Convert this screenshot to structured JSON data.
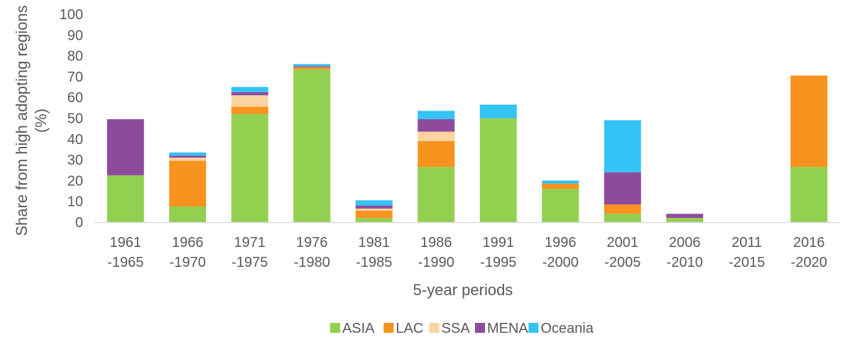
{
  "chart_data": {
    "type": "bar",
    "stacked": true,
    "title": "",
    "xlabel": "5-year periods",
    "ylabel": "Share from high adopting regions (%)",
    "ylim": [
      0,
      100
    ],
    "yticks": [
      0,
      10,
      20,
      30,
      40,
      50,
      60,
      70,
      80,
      90,
      100
    ],
    "grid": false,
    "legend_position": "bottom",
    "categories": [
      [
        "1961",
        "-1965"
      ],
      [
        "1966",
        "-1970"
      ],
      [
        "1971",
        "-1975"
      ],
      [
        "1976",
        "-1980"
      ],
      [
        "1981",
        "-1985"
      ],
      [
        "1986",
        "-1990"
      ],
      [
        "1991",
        "-1995"
      ],
      [
        "1996",
        "-2000"
      ],
      [
        "2001",
        "-2005"
      ],
      [
        "2006",
        "-2010"
      ],
      [
        "2011",
        "-2015"
      ],
      [
        "2016",
        "-2020"
      ]
    ],
    "series": [
      {
        "name": "ASIA",
        "color": "#92d050",
        "values": [
          22.5,
          7.5,
          52,
          73.5,
          2,
          26.5,
          50,
          16,
          4,
          2,
          0,
          26.5
        ]
      },
      {
        "name": "LAC",
        "color": "#f7931e",
        "values": [
          0,
          22,
          3.5,
          1,
          3.5,
          12.5,
          0,
          2.5,
          4.5,
          0,
          0,
          44
        ]
      },
      {
        "name": "SSA",
        "color": "#fbd3a0",
        "values": [
          0,
          1.5,
          5.5,
          0,
          1,
          4.5,
          0,
          0,
          0,
          0,
          0,
          0
        ]
      },
      {
        "name": "MENA",
        "color": "#8e4b9e",
        "values": [
          27,
          1,
          1.5,
          0.5,
          1.5,
          6,
          0,
          0,
          15.5,
          2,
          0,
          0
        ]
      },
      {
        "name": "Oceania",
        "color": "#33c3f5",
        "values": [
          0,
          1.5,
          2.5,
          1,
          2.5,
          4,
          6.5,
          1.5,
          25,
          0,
          0,
          0
        ]
      }
    ]
  }
}
